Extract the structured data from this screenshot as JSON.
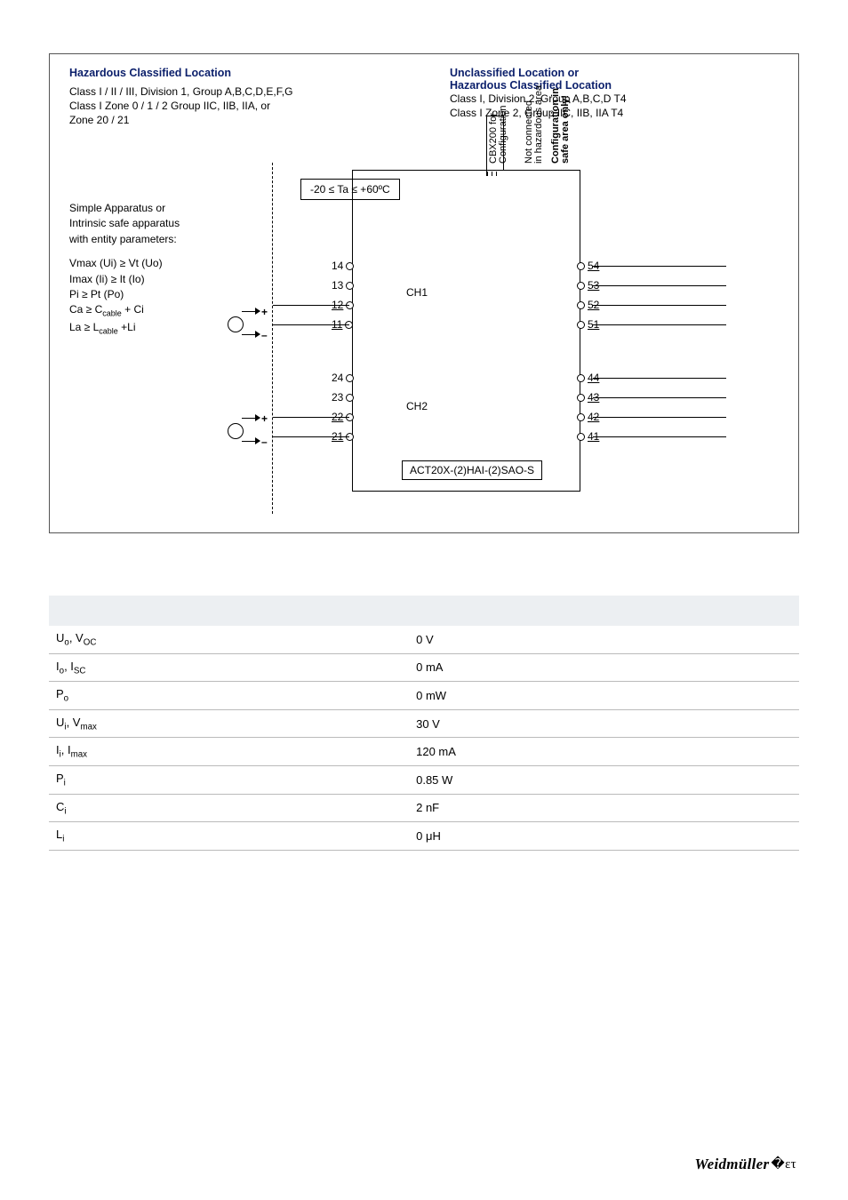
{
  "left_heading": "Hazardous Classified Location",
  "left_lines": [
    "Class I / II / III, Division 1, Group A,B,C,D,E,F,G",
    "Class I Zone 0 / 1 / 2 Group IIC, IIB, IIA, or",
    "Zone 20 / 21"
  ],
  "right_heading": "Unclassified Location or",
  "right_heading2": "Hazardous Classified Location",
  "right_lines": [
    "Class I, Division 2, Group A,B,C,D T4",
    "Class I Zone 2, Group IIC, IIB, IIA T4"
  ],
  "body_label1": "Simple Apparatus or",
  "body_label2": "Intrinsic safe apparatus",
  "body_label3": "with entity parameters:",
  "entity": [
    "Vmax (Ui) ≥ Vt (Uo)",
    "Imax (Ii) ≥ It (Io)",
    "Pi ≥ Pt (Po)",
    "Ca ≥ Ccable + Ci",
    "La ≥ Lcable +Li"
  ],
  "temp": "-20 ≤ Ta ≤ +60ºC",
  "vbox1_a": "CBX200 for",
  "vbox1_b": "Configuration",
  "vbox2_a": "Not connected",
  "vbox2_b": "in hazardous area",
  "vbox3_a": "Configuration in",
  "vbox3_b": "safe area only!",
  "ch1": "CH1",
  "ch2": "CH2",
  "left_terms1": [
    "14",
    "13",
    "12",
    "11"
  ],
  "left_terms2": [
    "24",
    "23",
    "22",
    "21"
  ],
  "right_terms1": [
    "54",
    "53",
    "52",
    "51"
  ],
  "right_terms2": [
    "44",
    "43",
    "42",
    "41"
  ],
  "device": "ACT20X-(2)HAI-(2)SAO-S",
  "params": [
    {
      "k": "U<sub>o</sub>, V<sub>OC</sub>",
      "v": "0 V"
    },
    {
      "k": "I<sub>o</sub>, I<sub>SC</sub>",
      "v": "0 mA"
    },
    {
      "k": "P<sub>o</sub>",
      "v": "0 mW"
    },
    {
      "k": "U<sub>i</sub>, V<sub>max</sub>",
      "v": "30 V"
    },
    {
      "k": "I<sub>i</sub>, I<sub>max</sub>",
      "v": "120 mA"
    },
    {
      "k": "P<sub>i</sub>",
      "v": "0.85 W"
    },
    {
      "k": "C<sub>i</sub>",
      "v": "2 nF"
    },
    {
      "k": "L<sub>i</sub>",
      "v": "0 μH"
    }
  ],
  "logo": "Weidmüller",
  "logo_sym": "�ετ",
  "colors": {
    "heading": "#0b1f6b"
  }
}
